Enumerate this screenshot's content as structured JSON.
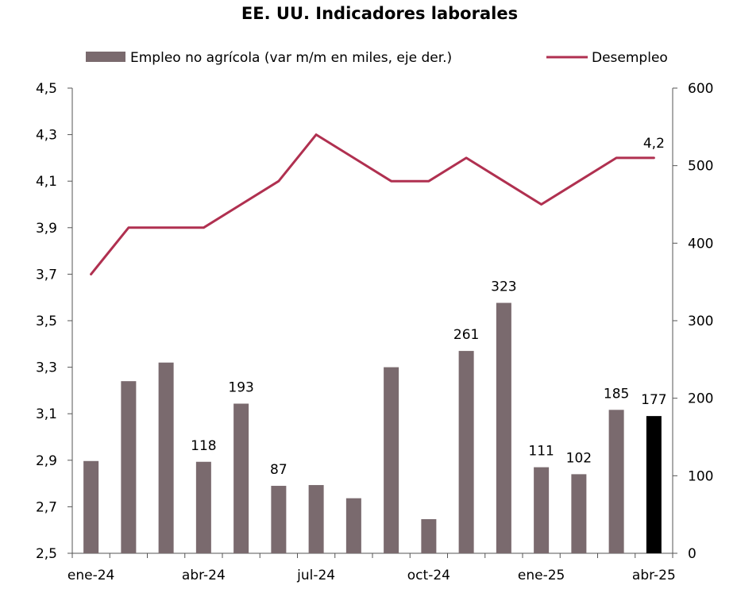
{
  "chart_data": {
    "type": "bar+line",
    "title": "EE. UU. Indicadores laborales",
    "categories": [
      "ene-24",
      "feb-24",
      "mar-24",
      "abr-24",
      "may-24",
      "jun-24",
      "jul-24",
      "ago-24",
      "sep-24",
      "oct-24",
      "nov-24",
      "dic-24",
      "ene-25",
      "feb-25",
      "mar-25",
      "abr-25"
    ],
    "x_tick_labels": [
      "ene-24",
      "abr-24",
      "jul-24",
      "oct-24",
      "ene-25",
      "abr-25"
    ],
    "left_axis": {
      "min": 2.5,
      "max": 4.5,
      "ticks": [
        "2,5",
        "2,7",
        "2,9",
        "3,1",
        "3,3",
        "3,5",
        "3,7",
        "3,9",
        "4,1",
        "4,3",
        "4,5"
      ]
    },
    "right_axis": {
      "min": 0,
      "max": 600,
      "ticks": [
        "0",
        "100",
        "200",
        "300",
        "400",
        "500",
        "600"
      ]
    },
    "series": [
      {
        "name": "Empleo no agrícola (var m/m en miles, eje der.)",
        "type": "bar",
        "axis": "right",
        "color": "#7a6a6e",
        "highlight_color": "#000000",
        "highlight_index": 15,
        "values": [
          119,
          222,
          246,
          118,
          193,
          87,
          88,
          71,
          240,
          44,
          261,
          323,
          111,
          102,
          185,
          177
        ],
        "labels": [
          "",
          "",
          "",
          "118",
          "193",
          "87",
          "",
          "",
          "",
          "",
          "261",
          "323",
          "111",
          "102",
          "185",
          "177"
        ]
      },
      {
        "name": "Desempleo",
        "type": "line",
        "axis": "left",
        "color": "#b03050",
        "values": [
          3.7,
          3.9,
          3.9,
          3.9,
          4.0,
          4.1,
          4.3,
          4.2,
          4.1,
          4.1,
          4.2,
          4.1,
          4.0,
          4.1,
          4.2,
          4.2
        ],
        "end_label": "4,2"
      }
    ]
  }
}
